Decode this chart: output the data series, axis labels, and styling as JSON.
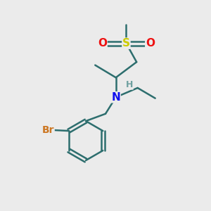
{
  "background_color": "#ebebeb",
  "bond_color": "#2d6e6e",
  "bond_lw": 1.8,
  "atom_colors": {
    "C": "#2d6e6e",
    "H": "#6fa0a0",
    "N": "#1010ee",
    "O": "#ee1010",
    "S": "#cccc00",
    "Br": "#cc7722"
  },
  "figsize": [
    3.0,
    3.0
  ],
  "dpi": 100
}
